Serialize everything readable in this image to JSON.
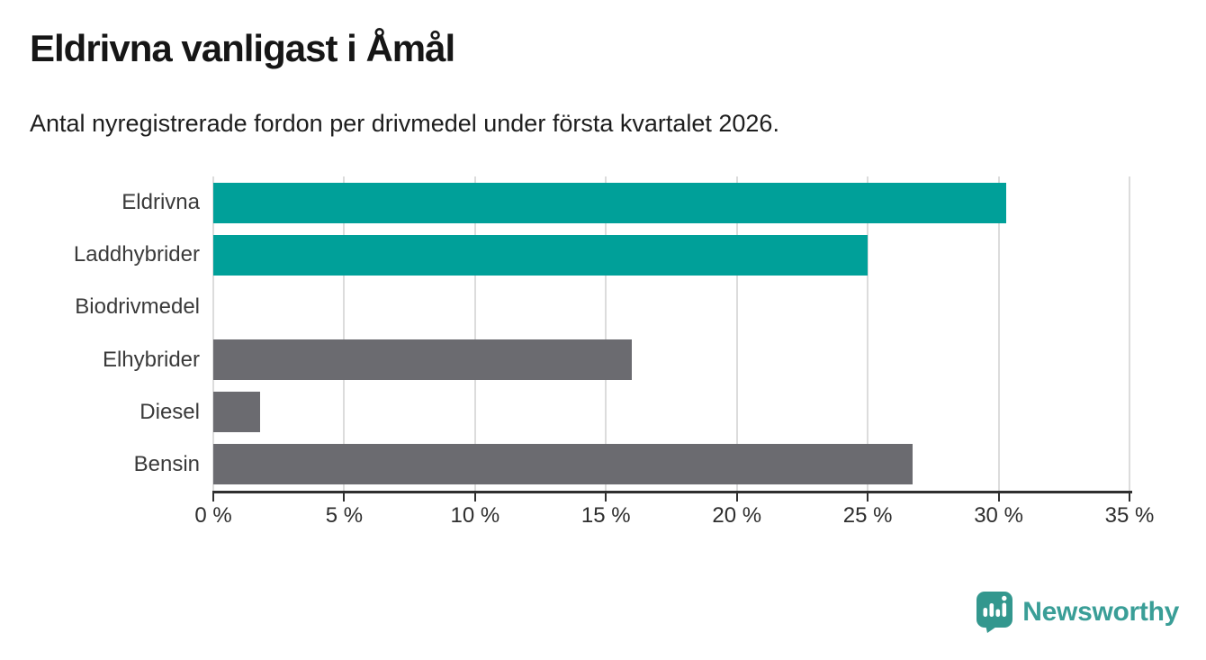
{
  "header": {
    "title": "Eldrivna vanligast i Åmål",
    "subtitle": "Antal nyregistrerade fordon per drivmedel under första kvartalet 2026."
  },
  "chart_data": {
    "type": "bar",
    "orientation": "horizontal",
    "title": "Eldrivna vanligast i Åmål",
    "subtitle": "Antal nyregistrerade fordon per drivmedel under första kvartalet 2026.",
    "categories": [
      "Eldrivna",
      "Laddhybrider",
      "Biodrivmedel",
      "Elhybrider",
      "Diesel",
      "Bensin"
    ],
    "values": [
      30.3,
      25.0,
      0,
      16.0,
      1.8,
      26.7
    ],
    "unit": "%",
    "bar_colors": [
      "#00a099",
      "#00a099",
      "#00a099",
      "#6b6b70",
      "#6b6b70",
      "#6b6b70"
    ],
    "xlim": [
      0,
      35
    ],
    "x_ticks": [
      0,
      5,
      10,
      15,
      20,
      25,
      30,
      35
    ],
    "x_tick_labels": [
      "0 %",
      "5 %",
      "10 %",
      "15 %",
      "20 %",
      "25 %",
      "30 %",
      "35 %"
    ],
    "ylabel": "",
    "xlabel": "",
    "grid": "vertical-gridlines",
    "legend": null
  },
  "branding": {
    "name": "Newsworthy",
    "icon": "newsworthy-speech-bubble-bar-chart-icon",
    "icon_color": "#33978e",
    "text_color": "#3a9e97"
  },
  "colors": {
    "accent_teal": "#00a099",
    "neutral_gray": "#6b6b70",
    "gridline": "#dcdcdc",
    "axis": "#2f2f2f",
    "background": "#ffffff"
  }
}
